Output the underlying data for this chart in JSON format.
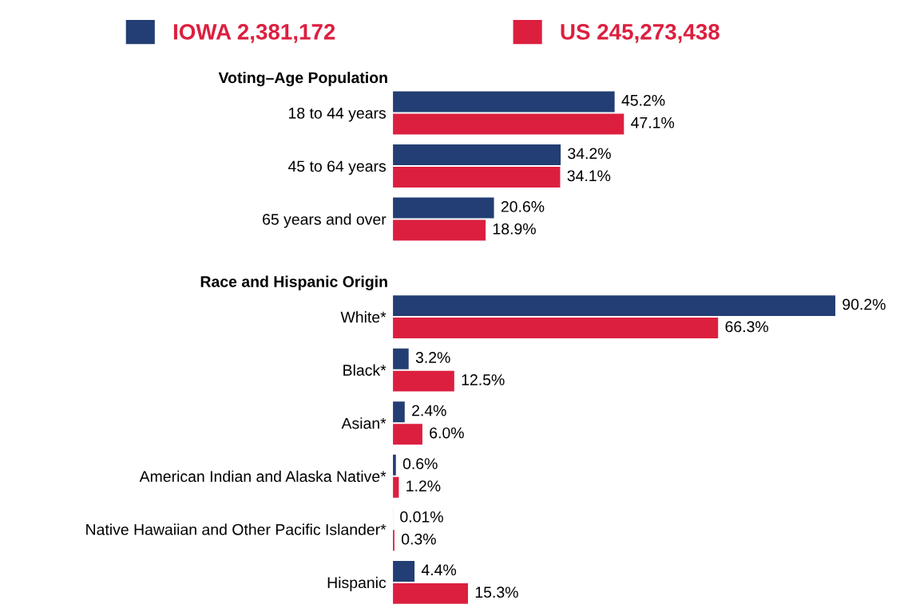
{
  "chart_data": [
    {
      "type": "bar",
      "orientation": "horizontal",
      "title": "Voting–Age Population",
      "categories": [
        "18 to 44 years",
        "45 to 64 years",
        "65 years and over"
      ],
      "tick_labels": "y",
      "grid": false,
      "legend": "top",
      "series": [
        {
          "name": "IOWA 2,381,172",
          "color": "#233e74",
          "values": [
            45.2,
            34.2,
            20.6
          ],
          "value_labels": [
            "45.2%",
            "34.2%",
            "20.6%"
          ]
        },
        {
          "name": "US 245,273,438",
          "color": "#dc1f3f",
          "values": [
            47.1,
            34.1,
            18.9
          ],
          "value_labels": [
            "47.1%",
            "34.1%",
            "18.9%"
          ]
        }
      ]
    },
    {
      "type": "bar",
      "orientation": "horizontal",
      "title": "Race and Hispanic Origin",
      "categories": [
        "White*",
        "Black*",
        "Asian*",
        "American Indian and Alaska Native*",
        "Native Hawaiian and Other Pacific Islander*",
        "Hispanic"
      ],
      "tick_labels": "y",
      "grid": false,
      "series": [
        {
          "color": "#233e74",
          "values": [
            90.2,
            3.2,
            2.4,
            0.6,
            0.01,
            4.4
          ],
          "value_labels": [
            "90.2%",
            "3.2%",
            "2.4%",
            "0.6%",
            "0.01%",
            "4.4%"
          ]
        },
        {
          "color": "#dc1f3f",
          "values": [
            66.3,
            12.5,
            6.0,
            1.2,
            0.3,
            15.3
          ],
          "value_labels": [
            "66.3%",
            "12.5%",
            "6.0%",
            "1.2%",
            "0.3%",
            "15.3%"
          ]
        }
      ]
    }
  ]
}
